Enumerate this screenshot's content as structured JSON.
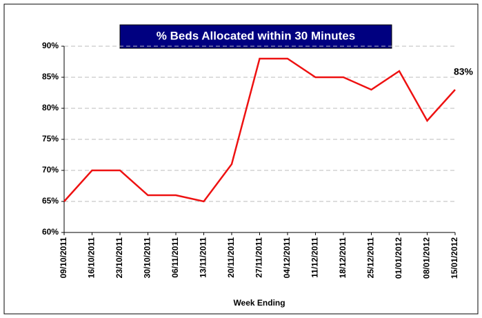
{
  "chart_data": {
    "type": "line",
    "title": "% Beds Allocated within 30 Minutes",
    "x_label": "Week Ending",
    "categories": [
      "09/10/2011",
      "16/10/2011",
      "23/10/2011",
      "30/10/2011",
      "06/11/2011",
      "13/11/2011",
      "20/11/2011",
      "27/11/2011",
      "04/12/2011",
      "11/12/2011",
      "18/12/2011",
      "25/12/2011",
      "01/01/2012",
      "08/01/2012",
      "15/01/2012"
    ],
    "values": [
      65,
      70,
      70,
      66,
      66,
      65,
      71,
      88,
      88,
      85,
      85,
      83,
      86,
      78,
      83
    ],
    "value_labels": [
      null,
      null,
      null,
      null,
      null,
      null,
      null,
      null,
      null,
      null,
      null,
      null,
      null,
      null,
      "83%"
    ],
    "color": "#ee1111",
    "ylim": [
      60,
      90
    ],
    "yticks": [
      {
        "value": 60,
        "label": "60%"
      },
      {
        "value": 65,
        "label": "65%"
      },
      {
        "value": 70,
        "label": "70%"
      },
      {
        "value": 75,
        "label": "75%"
      },
      {
        "value": 80,
        "label": "80%"
      },
      {
        "value": 85,
        "label": "85%"
      },
      {
        "value": 90,
        "label": "90%"
      }
    ],
    "grid": true
  }
}
